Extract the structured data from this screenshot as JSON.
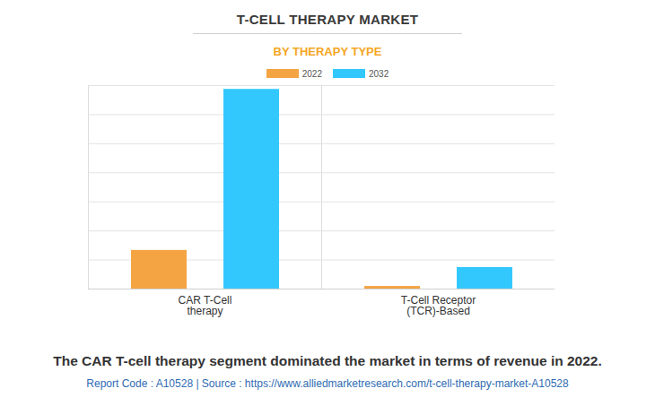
{
  "chart_data": {
    "type": "bar",
    "title": "T-CELL THERAPY MARKET",
    "subtitle": "BY THERAPY TYPE",
    "caption": "The CAR T-cell therapy segment dominated the market in terms of revenue in 2022.",
    "source": "Report Code : A10528  |  Source : https://www.alliedmarketresearch.com/t-cell-therapy-market-A10528",
    "categories": [
      "CAR T-Cell\ntherapy",
      "T-Cell Receptor\n(TCR)-Based"
    ],
    "series": [
      {
        "name": "2022",
        "color": "#f4a443",
        "values": [
          1.33,
          0.09
        ]
      },
      {
        "name": "2032",
        "color": "#33c8fd",
        "values": [
          6.87,
          0.74
        ]
      }
    ],
    "ylim": [
      0,
      7
    ],
    "yticks": [
      0,
      1,
      2,
      3,
      4,
      5,
      6,
      7
    ],
    "grid": true,
    "tick_labels": "x",
    "legend": "top"
  }
}
